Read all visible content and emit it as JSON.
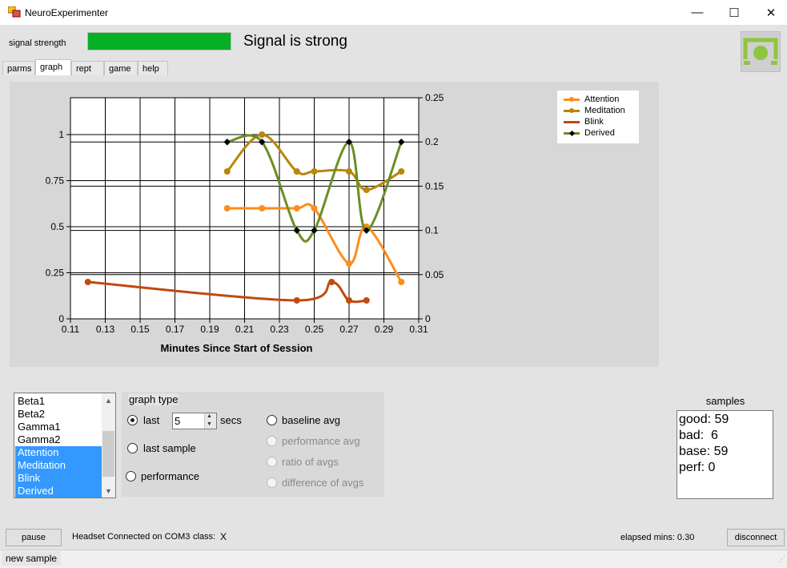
{
  "window": {
    "title": "NeuroExperimenter",
    "minimize_glyph": "—",
    "maximize_glyph": "☐",
    "close_glyph": "✕"
  },
  "signal": {
    "label": "signal strength",
    "status_text": "Signal is strong",
    "level_fraction": 1.0,
    "bar_color": "#06b025"
  },
  "tabs": [
    {
      "label": "parms"
    },
    {
      "label": "graph",
      "active": true
    },
    {
      "label": "rept"
    },
    {
      "label": "game"
    },
    {
      "label": "help"
    }
  ],
  "chart_data": {
    "type": "line",
    "xlabel": "Minutes Since Start of Session",
    "x_ticks": [
      "0.11",
      "0.13",
      "0.15",
      "0.17",
      "0.19",
      "0.21",
      "0.23",
      "0.25",
      "0.27",
      "0.29",
      "0.31"
    ],
    "xlim": [
      0.11,
      0.31
    ],
    "y_left_ticks": [
      "0",
      "0.25",
      "0.5",
      "0.75",
      "1"
    ],
    "ylim_left": [
      0,
      1.2
    ],
    "y_right_ticks": [
      "0",
      "0.05",
      "0.1",
      "0.15",
      "0.2",
      "0.25"
    ],
    "ylim_right": [
      0,
      0.25
    ],
    "grid": true,
    "legend_position": "top-right",
    "series": [
      {
        "name": "Attention",
        "color": "#ff8c1a",
        "axis": "left",
        "x": [
          0.2,
          0.22,
          0.24,
          0.25,
          0.27,
          0.28,
          0.3
        ],
        "y": [
          0.6,
          0.6,
          0.6,
          0.6,
          0.3,
          0.5,
          0.2
        ]
      },
      {
        "name": "Meditation",
        "color": "#b8860b",
        "axis": "left",
        "x": [
          0.2,
          0.22,
          0.24,
          0.25,
          0.27,
          0.28,
          0.3
        ],
        "y": [
          0.8,
          1.0,
          0.8,
          0.8,
          0.8,
          0.7,
          0.8
        ]
      },
      {
        "name": "Blink",
        "color": "#c04a0f",
        "axis": "left",
        "x": [
          0.12,
          0.24,
          0.26,
          0.27,
          0.28
        ],
        "y": [
          0.2,
          0.1,
          0.2,
          0.1,
          0.1
        ]
      },
      {
        "name": "Derived",
        "color": "#6b8e23",
        "axis": "right",
        "x": [
          0.2,
          0.22,
          0.24,
          0.25,
          0.27,
          0.28,
          0.3
        ],
        "y": [
          0.2,
          0.2,
          0.1,
          0.1,
          0.2,
          0.1,
          0.2
        ]
      }
    ]
  },
  "listbox": {
    "items": [
      {
        "label": "Beta1",
        "selected": false
      },
      {
        "label": "Beta2",
        "selected": false
      },
      {
        "label": "Gamma1",
        "selected": false
      },
      {
        "label": "Gamma2",
        "selected": false
      },
      {
        "label": "Attention",
        "selected": true
      },
      {
        "label": "Meditation",
        "selected": true
      },
      {
        "label": "Blink",
        "selected": true
      },
      {
        "label": "Derived",
        "selected": true
      }
    ]
  },
  "graph_type": {
    "title": "graph type",
    "last_label": "last",
    "secs_value": "5",
    "secs_unit": "secs",
    "last_sample_label": "last sample",
    "performance_label": "performance",
    "baseline_avg_label": "baseline avg",
    "performance_avg_label": "performance avg",
    "ratio_label": "ratio of avgs",
    "difference_label": "difference of avgs",
    "selected": "last"
  },
  "samples": {
    "title": "samples",
    "lines": [
      "good: 59",
      "bad:  6",
      "base: 59",
      "perf: 0"
    ]
  },
  "bottom": {
    "pause_label": "pause",
    "status_text": "Headset Connected on COM3",
    "class_label": "class:",
    "class_value": "X",
    "elapsed_text": "elapsed mins: 0.30",
    "disconnect_label": "disconnect"
  },
  "statusbar": {
    "text": "new sample"
  }
}
